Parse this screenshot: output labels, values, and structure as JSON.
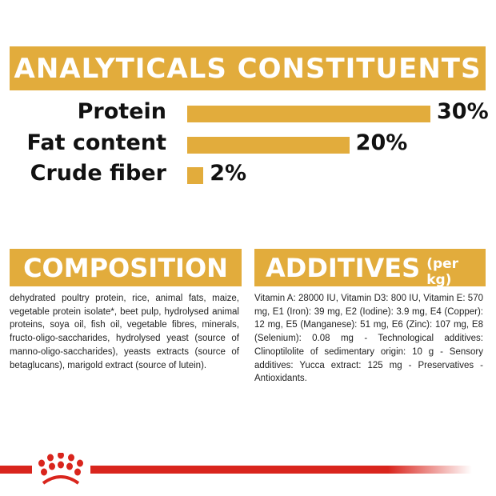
{
  "chart_data": {
    "type": "bar",
    "orientation": "horizontal",
    "title": "ANALYTICALS CONSTITUENTS",
    "categories": [
      "Protein",
      "Fat content",
      "Crude fiber"
    ],
    "values": [
      30,
      20,
      2
    ],
    "value_labels": [
      "30%",
      "20%",
      "2%"
    ],
    "unit": "%",
    "bar_color": "#e2ac3c"
  },
  "composition": {
    "title": "COMPOSITION",
    "text": "dehydrated poultry protein, rice, animal fats, maize, vegetable protein isolate*, beet pulp, hydrolysed animal proteins, soya oil, fish oil, vegetable fibres, minerals, fructo-oligo-saccharides, hydrolysed yeast (source of manno-oligo-saccharides), yeasts extracts (source of betaglucans), marigold extract (source of lutein)."
  },
  "additives": {
    "title": "ADDITIVES",
    "subtitle": "(per kg)",
    "text": "Vitamin A: 28000 IU, Vitamin D3: 800 IU, Vitamin E: 570 mg, E1 (Iron): 39 mg, E2 (Iodine): 3.9 mg, E4 (Copper): 12 mg, E5 (Manganese): 51 mg, E6 (Zinc): 107 mg, E8 (Selenium): 0.08 mg - Technological additives: Clinoptilolite of sedimentary origin: 10 g - Sensory additives: Yucca extract: 125 mg - Preservatives - Antioxidants."
  },
  "brand": {
    "logo": "royal-canin-crown-icon",
    "color": "#d9251d"
  }
}
